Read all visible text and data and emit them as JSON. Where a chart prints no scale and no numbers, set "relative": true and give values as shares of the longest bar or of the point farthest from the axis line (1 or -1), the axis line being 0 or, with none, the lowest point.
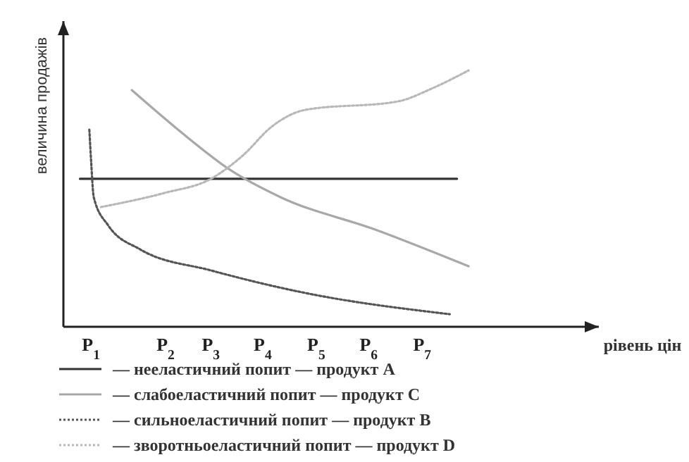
{
  "chart_data": {
    "type": "line",
    "relative": true,
    "xlabel": "рівень цін",
    "ylabel": "величина продажів",
    "xlim": [
      0.5,
      10.2
    ],
    "xticks": [
      {
        "value": 1,
        "label": "P$_{1}$"
      },
      {
        "value": 2.35,
        "label": "P$_{2}$"
      },
      {
        "value": 3.17,
        "label": "P$_{3}$"
      },
      {
        "value": 4.11,
        "label": "P$_{4}$"
      },
      {
        "value": 5.08,
        "label": "P$_{5}$"
      },
      {
        "value": 6.03,
        "label": "P$_{6}$"
      },
      {
        "value": 7,
        "label": "P$_{7}$"
      }
    ],
    "legend": "bottom",
    "grid": false,
    "marker": "none",
    "series": [
      {
        "name": "— нееластичний попит — продукт A",
        "color": "#333333",
        "line_style": "solid",
        "x": [
          0.8,
          7.63
        ],
        "values": [
          0.577,
          0.577
        ]
      },
      {
        "name": "— слабоеластичний попит — продукт C",
        "color": "#a8a8a8",
        "line_style": "solid",
        "x": [
          1.74,
          2.73,
          3.5,
          4.44,
          6.15,
          7.84
        ],
        "values": [
          0.923,
          0.742,
          0.615,
          0.505,
          0.379,
          0.236
        ]
      },
      {
        "name": "— сильноеластичний попит — продукт B",
        "color": "#555555",
        "line_style": "dotted",
        "x": [
          0.97,
          1.0,
          1.05,
          1.31,
          1.89,
          3.17,
          4.88,
          7.5
        ],
        "values": [
          0.769,
          0.654,
          0.505,
          0.396,
          0.302,
          0.22,
          0.132,
          0.049
        ]
      },
      {
        "name": "— зворотньоеластичний попит — продукт D",
        "color": "#b8b8b8",
        "line_style": "dotted",
        "x": [
          1.18,
          2.33,
          3.17,
          3.76,
          4.27,
          4.88,
          6.56,
          7.17,
          7.84
        ],
        "values": [
          0.467,
          0.522,
          0.577,
          0.67,
          0.78,
          0.846,
          0.879,
          0.929,
          1.0
        ]
      }
    ]
  }
}
